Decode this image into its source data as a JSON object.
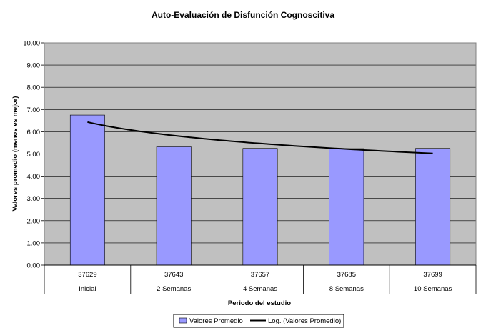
{
  "chart_data": {
    "type": "bar",
    "title": "Auto-Evaluación de Disfunción Cognoscitiva",
    "xlabel": "Periodo del estudio",
    "ylabel": "Valores promedio (menos es mejor)",
    "ylim": [
      0,
      10
    ],
    "yticks": [
      "0.00",
      "1.00",
      "2.00",
      "3.00",
      "4.00",
      "5.00",
      "6.00",
      "7.00",
      "8.00",
      "9.00",
      "10.00"
    ],
    "categories": [
      {
        "top": "37629",
        "bottom": "Inicial"
      },
      {
        "top": "37643",
        "bottom": "2 Semanas"
      },
      {
        "top": "37657",
        "bottom": "4 Semanas"
      },
      {
        "top": "37685",
        "bottom": "8 Semanas"
      },
      {
        "top": "37699",
        "bottom": "10 Semanas"
      }
    ],
    "series": [
      {
        "name": "Valores Promedio",
        "values": [
          6.75,
          5.32,
          5.25,
          5.24,
          5.25
        ],
        "color": "#9999ff"
      },
      {
        "name": "Log. (Valores Promedio)",
        "type": "logarithmic-trendline",
        "values": [
          6.43,
          5.83,
          5.48,
          5.22,
          5.02
        ],
        "color": "#000000"
      }
    ],
    "plot_background": "#c0c0c0",
    "grid": true,
    "legend_position": "bottom"
  }
}
